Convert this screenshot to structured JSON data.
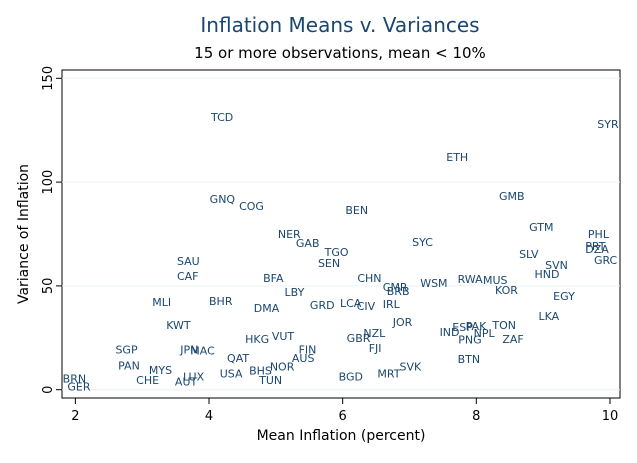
{
  "chart_data": {
    "type": "scatter",
    "title": "Inflation Means v. Variances",
    "subtitle": "15 or more observations, mean < 10%",
    "x_label": "Mean Inflation (percent)",
    "y_label": "Variance of Inflation",
    "xlim": [
      1.8,
      10.15
    ],
    "ylim": [
      -4,
      154
    ],
    "xticks": [
      2,
      4,
      6,
      8,
      10
    ],
    "yticks": [
      0,
      50,
      100,
      150
    ],
    "grid": true,
    "color": "#1a476f",
    "labels": [
      "TCD",
      "SYR",
      "ETH",
      "GMB",
      "GNQ",
      "COG",
      "BEN",
      "GTM",
      "PHL",
      "NER",
      "GAB",
      "SYC",
      "PRT",
      "DZA",
      "TGO",
      "SLV",
      "GRC",
      "SAU",
      "SEN",
      "SVN",
      "HND",
      "CAF",
      "BFA",
      "CHN",
      "RWA",
      "MUS",
      "WSM",
      "CMR",
      "BRB",
      "KOR",
      "LBY",
      "EGY",
      "MLI",
      "BHR",
      "GRD",
      "LCA",
      "CIV",
      "IRL",
      "DMA",
      "LKA",
      "KWT",
      "JOR",
      "TON",
      "ESP",
      "PAK",
      "IND",
      "NZL",
      "NPL",
      "GBR",
      "ZAF",
      "PNG",
      "HKG",
      "VUT",
      "FJI",
      "SGP",
      "JPN",
      "MAC",
      "FIN",
      "BTN",
      "QAT",
      "AUS",
      "PAN",
      "SVK",
      "MYS",
      "BHS",
      "USA",
      "LUX",
      "MRT",
      "CHE",
      "TUN",
      "BGD",
      "AUT",
      "BRN",
      "GER",
      "NOR"
    ],
    "x": [
      4.03,
      9.81,
      7.55,
      8.34,
      4.01,
      4.45,
      6.04,
      8.79,
      9.67,
      5.03,
      5.3,
      7.04,
      9.63,
      9.63,
      5.73,
      8.64,
      9.76,
      3.52,
      5.63,
      9.03,
      8.87,
      3.52,
      4.81,
      6.22,
      7.72,
      8.1,
      7.16,
      6.6,
      6.66,
      8.28,
      5.13,
      9.15,
      3.15,
      4.0,
      5.51,
      5.96,
      6.21,
      6.6,
      4.67,
      8.93,
      3.36,
      6.75,
      8.24,
      7.64,
      7.84,
      7.45,
      6.31,
      7.96,
      6.06,
      8.39,
      7.73,
      4.54,
      4.94,
      6.39,
      2.6,
      3.57,
      3.72,
      5.34,
      7.72,
      4.27,
      5.24,
      2.64,
      6.85,
      3.1,
      4.6,
      4.16,
      3.61,
      6.52,
      2.91,
      4.75,
      5.94,
      3.49,
      1.81,
      1.88,
      4.91
    ],
    "values": [
      130.8,
      127.4,
      111.5,
      92.8,
      91.3,
      88.0,
      86.1,
      77.9,
      74.5,
      74.5,
      70.2,
      70.7,
      68.8,
      67.3,
      65.9,
      64.9,
      62.0,
      61.5,
      60.6,
      59.6,
      55.3,
      54.3,
      53.4,
      53.4,
      52.9,
      52.4,
      51.0,
      49.0,
      47.1,
      47.6,
      46.6,
      44.7,
      41.8,
      42.3,
      40.4,
      41.3,
      39.9,
      40.9,
      38.9,
      35.1,
      30.8,
      32.2,
      30.8,
      29.8,
      30.3,
      27.4,
      26.9,
      26.9,
      24.5,
      24.0,
      23.6,
      24.0,
      25.5,
      19.7,
      18.8,
      18.8,
      18.3,
      18.8,
      14.4,
      14.9,
      14.9,
      11.1,
      10.6,
      9.1,
      8.7,
      7.2,
      5.8,
      7.2,
      4.3,
      4.3,
      5.8,
      3.4,
      4.8,
      1.0,
      10.6
    ]
  }
}
